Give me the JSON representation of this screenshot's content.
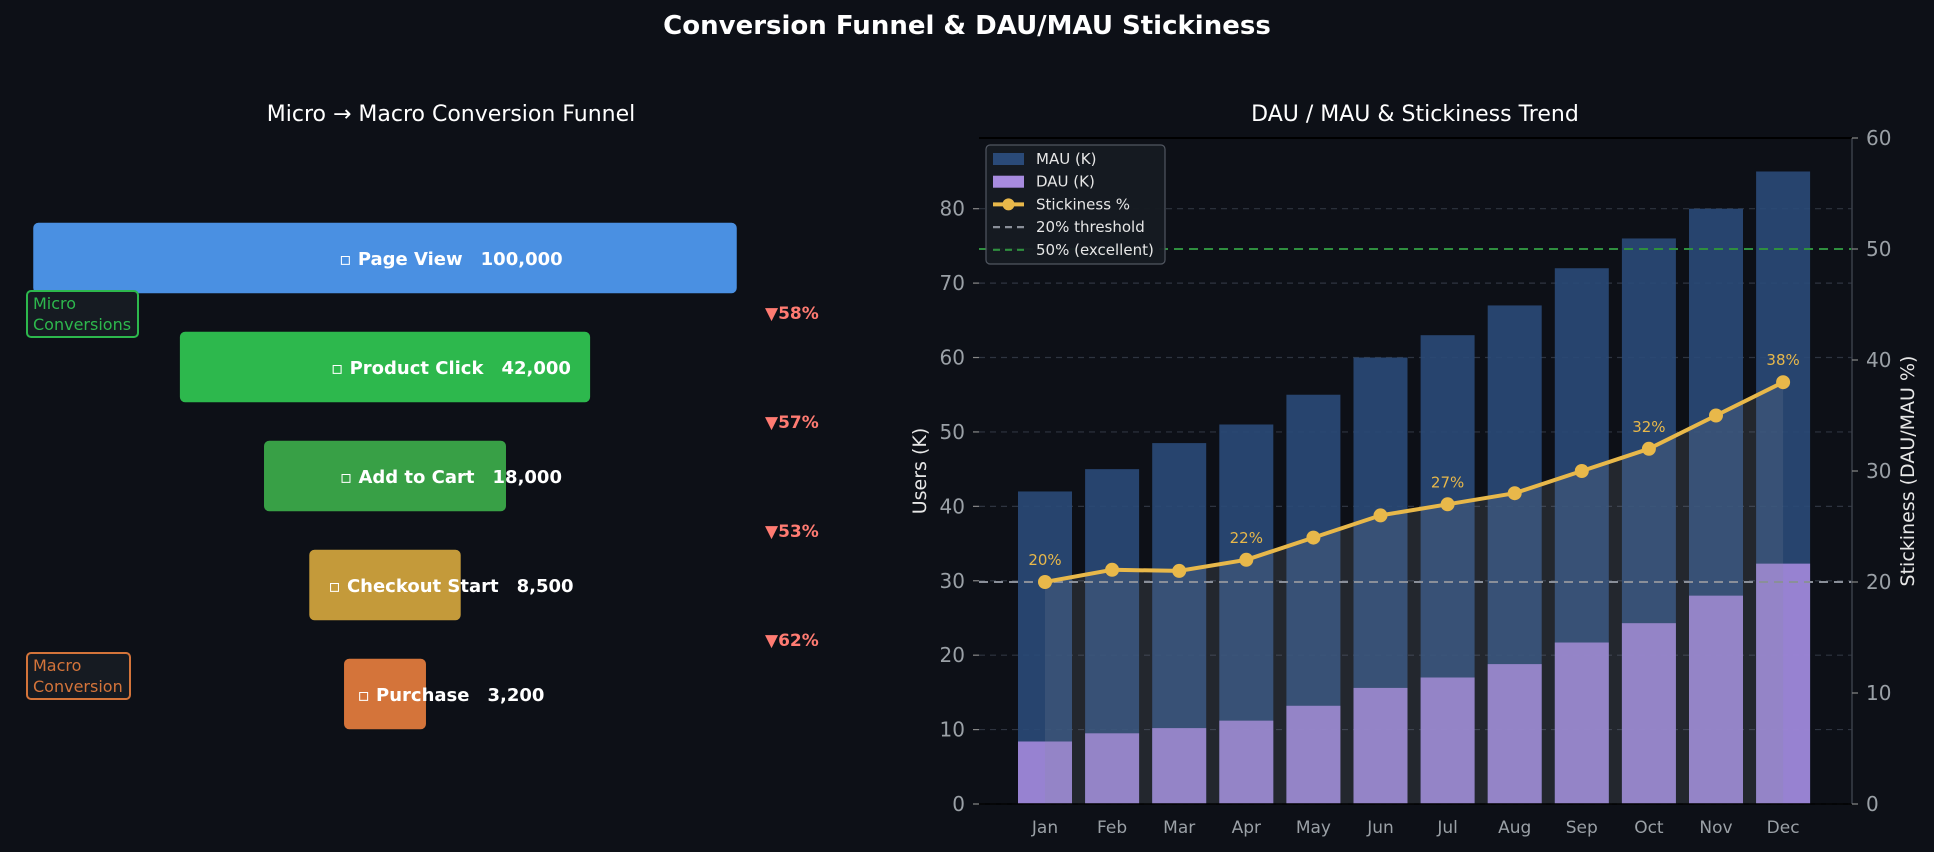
{
  "figure": {
    "title": "Conversion Funnel & DAU/MAU Stickiness",
    "background": "#0d1017"
  },
  "chart_data": [
    {
      "type": "funnel",
      "title": "Micro → Macro Conversion Funnel",
      "stages": [
        {
          "label": "Page View",
          "value": 100000,
          "display": "100,000",
          "color": "#4a90e2",
          "icon": "eye-icon"
        },
        {
          "label": "Product Click",
          "value": 42000,
          "display": "42,000",
          "color": "#2db84d",
          "icon": "cursor-icon"
        },
        {
          "label": "Add to Cart",
          "value": 18000,
          "display": "18,000",
          "color": "#38a046",
          "icon": "cart-icon"
        },
        {
          "label": "Checkout Start",
          "value": 8500,
          "display": "8,500",
          "color": "#c49a3a",
          "icon": "card-icon"
        },
        {
          "label": "Purchase",
          "value": 3200,
          "display": "3,200",
          "color": "#d4743a",
          "icon": "check-icon"
        }
      ],
      "dropoffs": [
        "▼58%",
        "▼57%",
        "▼53%",
        "▼62%"
      ],
      "dropoff_color": "#ff7b72",
      "annotations": {
        "micro": "Micro\nConversions",
        "macro": "Macro\nConversion",
        "micro_color": "#2db84d",
        "macro_color": "#d4743a"
      }
    },
    {
      "type": "bar+line",
      "title": "DAU / MAU & Stickiness Trend",
      "categories": [
        "Jan",
        "Feb",
        "Mar",
        "Apr",
        "May",
        "Jun",
        "Jul",
        "Aug",
        "Sep",
        "Oct",
        "Nov",
        "Dec"
      ],
      "series": [
        {
          "name": "MAU (K)",
          "axis": "left",
          "color": "#2a4a78",
          "values": [
            42,
            45,
            48.5,
            51,
            55,
            60,
            63,
            67,
            72,
            76,
            80,
            85
          ]
        },
        {
          "name": "DAU (K)",
          "axis": "left",
          "color": "#a78bdf",
          "values": [
            8.4,
            9.5,
            10.2,
            11.2,
            13.2,
            15.6,
            17.0,
            18.8,
            21.7,
            24.3,
            28.0,
            32.3
          ]
        },
        {
          "name": "Stickiness %",
          "axis": "right",
          "color": "#e8b84a",
          "values": [
            20,
            21.1,
            21,
            22,
            24,
            26,
            27,
            28,
            30,
            32,
            35,
            38
          ]
        }
      ],
      "point_labels": [
        {
          "index": 0,
          "text": "20%"
        },
        {
          "index": 3,
          "text": "22%"
        },
        {
          "index": 6,
          "text": "27%"
        },
        {
          "index": 9,
          "text": "32%"
        },
        {
          "index": 11,
          "text": "38%"
        }
      ],
      "thresholds": [
        {
          "name": "20% threshold",
          "value": 20,
          "color": "#8a8f99"
        },
        {
          "name": "50% (excellent)",
          "value": 50,
          "color": "#2f8f3f"
        }
      ],
      "ylabel": "Users (K)",
      "ylabel_right": "Stickiness (DAU/MAU %)",
      "ylim": [
        0,
        89.5
      ],
      "ylim_right": [
        0,
        60
      ],
      "yticks": [
        0,
        10,
        20,
        30,
        40,
        50,
        60,
        70,
        80
      ],
      "yticks_right": [
        0,
        10,
        20,
        30,
        40,
        50,
        60
      ],
      "legend_position": "top-left",
      "grid": true
    }
  ]
}
